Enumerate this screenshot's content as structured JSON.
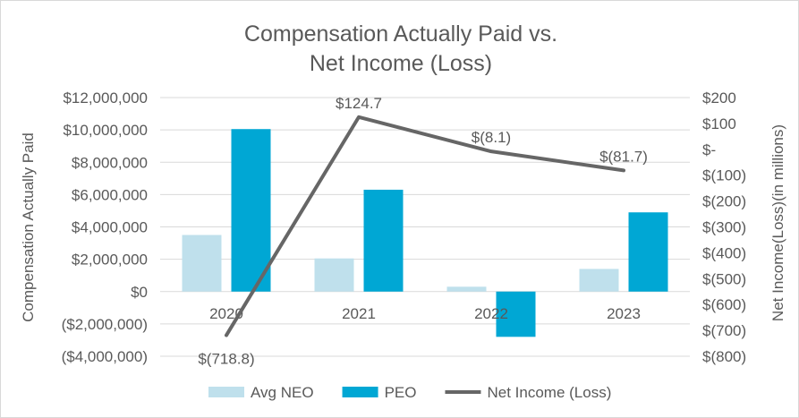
{
  "chart_data": {
    "type": "bar+line",
    "title_lines": [
      "Compensation Actually Paid vs.",
      "Net Income (Loss)"
    ],
    "categories": [
      "2020",
      "2021",
      "2022",
      "2023"
    ],
    "series": [
      {
        "name": "Avg NEO",
        "type": "bar",
        "axis": "left",
        "color": "#bfe0ec",
        "values": [
          3500000,
          2050000,
          300000,
          1400000
        ]
      },
      {
        "name": "PEO",
        "type": "bar",
        "axis": "left",
        "color": "#00a7d4",
        "values": [
          10050000,
          6300000,
          -2800000,
          4900000
        ]
      },
      {
        "name": "Net Income (Loss)",
        "type": "line",
        "axis": "right",
        "color": "#666666",
        "values": [
          -718.8,
          124.7,
          -8.1,
          -81.7
        ],
        "data_labels": [
          "$(718.8)",
          "$124.7",
          "$(8.1)",
          "$(81.7)"
        ]
      }
    ],
    "left_axis": {
      "label": "Compensation Actually Paid",
      "ylim": [
        -4000000,
        12000000
      ],
      "ticks": [
        {
          "value": 12000000,
          "label": "$12,000,000"
        },
        {
          "value": 10000000,
          "label": "$10,000,000"
        },
        {
          "value": 8000000,
          "label": "$8,000,000"
        },
        {
          "value": 6000000,
          "label": "$6,000,000"
        },
        {
          "value": 4000000,
          "label": "$4,000,000"
        },
        {
          "value": 2000000,
          "label": "$2,000,000"
        },
        {
          "value": 0,
          "label": "$0"
        },
        {
          "value": -2000000,
          "label": "($2,000,000)"
        },
        {
          "value": -4000000,
          "label": "($4,000,000)"
        }
      ]
    },
    "right_axis": {
      "label": "Net Income(Loss)(in millions)",
      "ylim": [
        -800,
        200
      ],
      "ticks": [
        {
          "value": 200,
          "label": "$200"
        },
        {
          "value": 100,
          "label": "$100"
        },
        {
          "value": 0,
          "label": "$-"
        },
        {
          "value": -100,
          "label": "$(100)"
        },
        {
          "value": -200,
          "label": "$(200)"
        },
        {
          "value": -300,
          "label": "$(300)"
        },
        {
          "value": -400,
          "label": "$(400)"
        },
        {
          "value": -500,
          "label": "$(500)"
        },
        {
          "value": -600,
          "label": "$(600)"
        },
        {
          "value": -700,
          "label": "$(700)"
        },
        {
          "value": -800,
          "label": "$(800)"
        }
      ]
    },
    "grid": true,
    "legend_position": "bottom-center"
  }
}
